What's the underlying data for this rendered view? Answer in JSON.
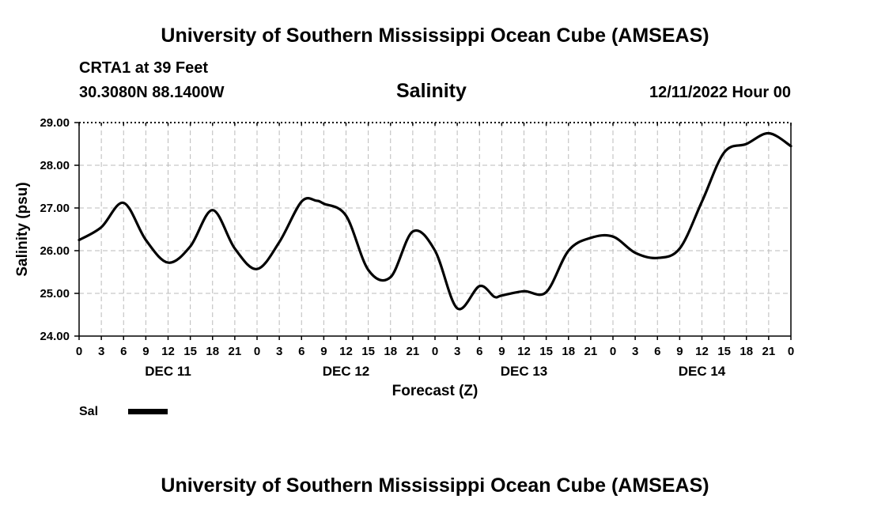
{
  "header": {
    "title_top": "University of Southern Mississippi Ocean Cube (AMSEAS)",
    "station": "CRTA1 at 39 Feet",
    "coords": "30.3080N  88.1400W",
    "datetime": "12/11/2022 Hour 00",
    "title_bottom": "University of Southern Mississippi Ocean Cube (AMSEAS)"
  },
  "chart_data": {
    "type": "line",
    "title": "Salinity",
    "xlabel": "Forecast (Z)",
    "ylabel": "Salinity (psu)",
    "ylim": [
      24.0,
      29.0
    ],
    "yticks": [
      "24.00",
      "25.00",
      "26.00",
      "27.00",
      "28.00",
      "29.00"
    ],
    "xlim": [
      0,
      96
    ],
    "xtick_labels": [
      "0",
      "3",
      "6",
      "9",
      "12",
      "15",
      "18",
      "21",
      "0",
      "3",
      "6",
      "9",
      "12",
      "15",
      "18",
      "21",
      "0",
      "3",
      "6",
      "9",
      "12",
      "15",
      "18",
      "21",
      "0",
      "3",
      "6",
      "9",
      "12",
      "15",
      "18",
      "21",
      "0"
    ],
    "day_labels": [
      {
        "hour": 12,
        "label": "DEC 11"
      },
      {
        "hour": 36,
        "label": "DEC 12"
      },
      {
        "hour": 60,
        "label": "DEC 13"
      },
      {
        "hour": 84,
        "label": "DEC 14"
      }
    ],
    "grid": true,
    "legend": [
      {
        "name": "Sal",
        "color": "#000000"
      }
    ],
    "series": [
      {
        "name": "Sal",
        "x": [
          0,
          3,
          6,
          9,
          12,
          15,
          18,
          21,
          24,
          27,
          30,
          32,
          33,
          36,
          39,
          42,
          45,
          48,
          51,
          54,
          56,
          57,
          60,
          63,
          66,
          69,
          72,
          75,
          78,
          81,
          84,
          87,
          90,
          93,
          96
        ],
        "y": [
          26.25,
          26.55,
          27.12,
          26.25,
          25.72,
          26.1,
          26.95,
          26.05,
          25.57,
          26.2,
          27.15,
          27.17,
          27.1,
          26.82,
          25.55,
          25.38,
          26.45,
          26.0,
          24.65,
          25.17,
          24.92,
          24.95,
          25.05,
          25.03,
          26.0,
          26.3,
          26.33,
          25.95,
          25.83,
          26.05,
          27.15,
          28.3,
          28.5,
          28.75,
          28.45
        ]
      }
    ]
  }
}
